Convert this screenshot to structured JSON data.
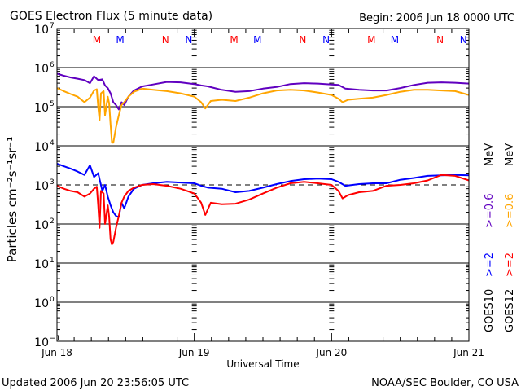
{
  "chart_data": {
    "type": "line",
    "title": "GOES Electron Flux (5 minute data)",
    "begin_label": "Begin: 2006 Jun 18 0000 UTC",
    "xlabel": "Universal Time",
    "ylabel": "Particles cm⁻²s⁻¹sr⁻¹",
    "yscale": "log",
    "ylim": [
      0.1,
      10000000
    ],
    "xlim_days": [
      0,
      3
    ],
    "y_ticks": [
      {
        "exp": "7",
        "value": 10000000
      },
      {
        "exp": "6",
        "value": 1000000
      },
      {
        "exp": "5",
        "value": 100000
      },
      {
        "exp": "4",
        "value": 10000
      },
      {
        "exp": "3",
        "value": 1000
      },
      {
        "exp": "2",
        "value": 100
      },
      {
        "exp": "1",
        "value": 10
      },
      {
        "exp": "0",
        "value": 1
      },
      {
        "exp": "−1",
        "value": 0.1
      }
    ],
    "x_ticks": [
      {
        "label": "Jun 18",
        "day": 0
      },
      {
        "label": "Jun 19",
        "day": 1
      },
      {
        "label": "Jun 20",
        "day": 2
      },
      {
        "label": "Jun 21",
        "day": 3
      }
    ],
    "solid_gridlines": [
      1000000,
      100000,
      10000,
      100,
      10,
      1
    ],
    "dashed_threshold": 1000,
    "noon_midnight_markers": [
      {
        "label": "M",
        "color": "#ff0000",
        "day": 0.29
      },
      {
        "label": "M",
        "color": "#0000ff",
        "day": 0.46
      },
      {
        "label": "N",
        "color": "#ff0000",
        "day": 0.79
      },
      {
        "label": "N",
        "color": "#0000ff",
        "day": 0.96
      },
      {
        "label": "M",
        "color": "#ff0000",
        "day": 1.29
      },
      {
        "label": "M",
        "color": "#0000ff",
        "day": 1.46
      },
      {
        "label": "N",
        "color": "#ff0000",
        "day": 1.79
      },
      {
        "label": "N",
        "color": "#0000ff",
        "day": 1.96
      },
      {
        "label": "M",
        "color": "#ff0000",
        "day": 2.29
      },
      {
        "label": "M",
        "color": "#0000ff",
        "day": 2.46
      },
      {
        "label": "N",
        "color": "#ff0000",
        "day": 2.79
      },
      {
        "label": "N",
        "color": "#0000ff",
        "day": 2.96
      }
    ],
    "legend": {
      "placement": "right",
      "columns": [
        {
          "satellite": "GOES10",
          "high_label": ">=2",
          "high_color": "#0000ff",
          "low_label": ">=0.6",
          "low_color": "#6000c0",
          "unit": "MeV"
        },
        {
          "satellite": "GOES12",
          "high_label": ">=2",
          "high_color": "#ff0000",
          "low_label": ">=0.6",
          "low_color": "#ffa500",
          "unit": "MeV"
        }
      ]
    },
    "series": [
      {
        "name": "GOES10 >=0.6 MeV",
        "color": "#6000c0",
        "x_days": [
          0,
          0.05,
          0.1,
          0.15,
          0.2,
          0.24,
          0.27,
          0.3,
          0.33,
          0.35,
          0.37,
          0.39,
          0.41,
          0.43,
          0.45,
          0.47,
          0.49,
          0.52,
          0.56,
          0.62,
          0.7,
          0.8,
          0.9,
          1.0,
          1.05,
          1.1,
          1.2,
          1.3,
          1.4,
          1.5,
          1.6,
          1.7,
          1.8,
          1.9,
          2.0,
          2.05,
          2.1,
          2.2,
          2.3,
          2.4,
          2.5,
          2.6,
          2.7,
          2.8,
          2.9,
          3.0
        ],
        "values": [
          700000,
          620000,
          560000,
          520000,
          480000,
          400000,
          600000,
          480000,
          500000,
          350000,
          300000,
          220000,
          130000,
          110000,
          85000,
          130000,
          110000,
          180000,
          260000,
          330000,
          370000,
          430000,
          420000,
          380000,
          350000,
          330000,
          270000,
          240000,
          250000,
          290000,
          320000,
          380000,
          400000,
          390000,
          370000,
          360000,
          290000,
          270000,
          260000,
          260000,
          300000,
          360000,
          410000,
          420000,
          410000,
          390000
        ]
      },
      {
        "name": "GOES12 >=0.6 MeV",
        "color": "#ffa500",
        "x_days": [
          0,
          0.05,
          0.1,
          0.15,
          0.2,
          0.24,
          0.27,
          0.29,
          0.3,
          0.31,
          0.32,
          0.34,
          0.35,
          0.37,
          0.38,
          0.39,
          0.4,
          0.41,
          0.43,
          0.45,
          0.47,
          0.49,
          0.52,
          0.56,
          0.62,
          0.7,
          0.8,
          0.9,
          1.0,
          1.05,
          1.08,
          1.12,
          1.2,
          1.3,
          1.4,
          1.5,
          1.6,
          1.7,
          1.8,
          1.9,
          2.0,
          2.05,
          2.08,
          2.12,
          2.2,
          2.3,
          2.4,
          2.5,
          2.6,
          2.7,
          2.8,
          2.9,
          3.0
        ],
        "values": [
          300000,
          250000,
          210000,
          180000,
          130000,
          170000,
          260000,
          280000,
          100000,
          45000,
          220000,
          250000,
          60000,
          180000,
          120000,
          35000,
          12000,
          12000,
          30000,
          60000,
          110000,
          130000,
          180000,
          240000,
          290000,
          270000,
          250000,
          220000,
          180000,
          130000,
          90000,
          140000,
          150000,
          140000,
          170000,
          220000,
          260000,
          270000,
          260000,
          230000,
          200000,
          160000,
          130000,
          150000,
          160000,
          170000,
          200000,
          240000,
          270000,
          270000,
          260000,
          250000,
          200000
        ]
      },
      {
        "name": "GOES10 >=2 MeV",
        "color": "#0000ff",
        "x_days": [
          0,
          0.05,
          0.1,
          0.15,
          0.2,
          0.24,
          0.27,
          0.3,
          0.33,
          0.35,
          0.37,
          0.39,
          0.41,
          0.43,
          0.45,
          0.47,
          0.49,
          0.52,
          0.56,
          0.62,
          0.7,
          0.8,
          0.9,
          1.0,
          1.05,
          1.1,
          1.2,
          1.3,
          1.4,
          1.5,
          1.6,
          1.7,
          1.8,
          1.9,
          2.0,
          2.05,
          2.1,
          2.2,
          2.3,
          2.4,
          2.5,
          2.6,
          2.7,
          2.8,
          2.9,
          3.0
        ],
        "values": [
          3500,
          3000,
          2600,
          2200,
          1800,
          3200,
          1600,
          2000,
          700,
          1000,
          500,
          300,
          200,
          160,
          150,
          350,
          250,
          500,
          800,
          1000,
          1100,
          1200,
          1150,
          1100,
          950,
          850,
          800,
          650,
          700,
          850,
          1050,
          1250,
          1400,
          1450,
          1400,
          1200,
          950,
          1050,
          1100,
          1100,
          1350,
          1500,
          1700,
          1750,
          1800,
          1750
        ]
      },
      {
        "name": "GOES12 >=2 MeV",
        "color": "#ff0000",
        "x_days": [
          0,
          0.05,
          0.1,
          0.15,
          0.2,
          0.24,
          0.27,
          0.29,
          0.3,
          0.31,
          0.32,
          0.34,
          0.35,
          0.37,
          0.38,
          0.39,
          0.4,
          0.41,
          0.43,
          0.45,
          0.47,
          0.49,
          0.52,
          0.56,
          0.62,
          0.7,
          0.8,
          0.9,
          1.0,
          1.05,
          1.08,
          1.12,
          1.2,
          1.3,
          1.4,
          1.5,
          1.6,
          1.7,
          1.8,
          1.9,
          2.0,
          2.05,
          2.08,
          2.12,
          2.2,
          2.3,
          2.4,
          2.5,
          2.6,
          2.7,
          2.8,
          2.9,
          3.0
        ],
        "values": [
          950,
          800,
          700,
          650,
          500,
          600,
          800,
          900,
          300,
          80,
          700,
          600,
          100,
          300,
          150,
          40,
          30,
          35,
          80,
          160,
          350,
          500,
          700,
          850,
          1000,
          1050,
          950,
          800,
          600,
          350,
          170,
          350,
          320,
          330,
          420,
          600,
          850,
          1100,
          1200,
          1100,
          1000,
          700,
          450,
          550,
          650,
          700,
          950,
          1000,
          1100,
          1300,
          1800,
          1700,
          1300
        ]
      }
    ]
  },
  "footer": {
    "updated": "Updated 2006 Jun 20 23:56:05 UTC",
    "credit": "NOAA/SEC Boulder, CO USA"
  }
}
